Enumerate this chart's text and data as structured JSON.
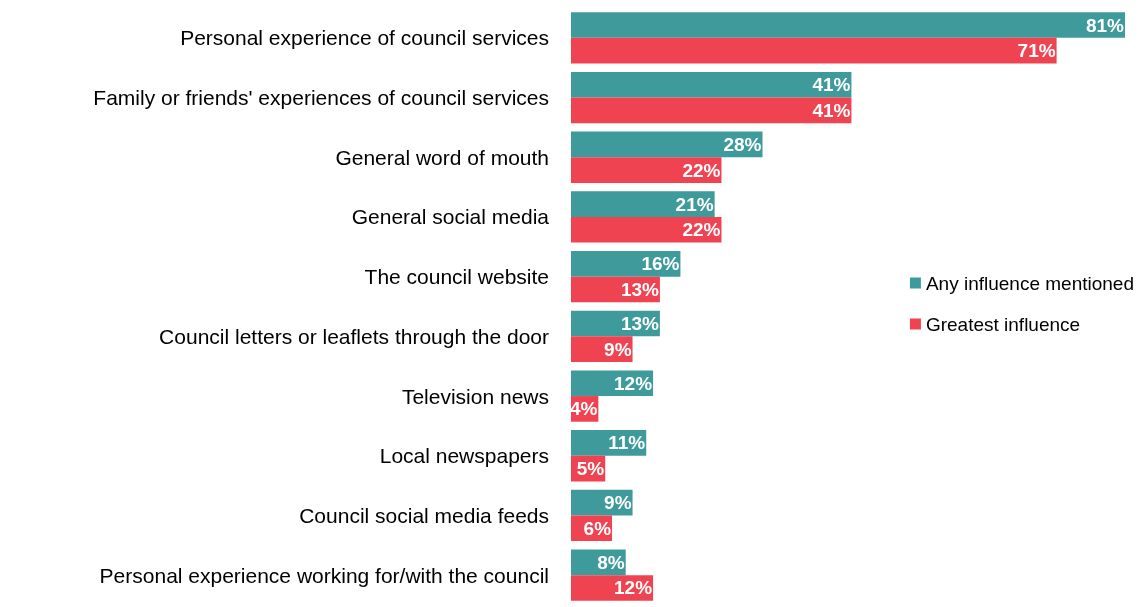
{
  "chart_data": {
    "type": "bar",
    "orientation": "horizontal",
    "legend": "right",
    "categories": [
      "Personal experience of council services",
      "Family or friends' experiences of council services",
      "General word of mouth",
      "General social media",
      "The council website",
      "Council letters or leaflets through the door",
      "Television news",
      "Local newspapers",
      "Council social media feeds",
      "Personal experience working for/with the council"
    ],
    "series": [
      {
        "name": "Any influence mentioned",
        "color": "#3f9b9b",
        "values": [
          81,
          41,
          28,
          21,
          16,
          13,
          12,
          11,
          9,
          8
        ],
        "value_labels": [
          "81%",
          "41%",
          "28%",
          "21%",
          "16%",
          "13%",
          "12%",
          "11%",
          "9%",
          "8%"
        ]
      },
      {
        "name": "Greatest influence",
        "color": "#f04352",
        "values": [
          71,
          41,
          22,
          22,
          13,
          9,
          4,
          5,
          6,
          12
        ],
        "value_labels": [
          "71%",
          "41%",
          "22%",
          "22%",
          "13%",
          "9%",
          "4%",
          "5%",
          "6%",
          "12%"
        ]
      }
    ]
  }
}
